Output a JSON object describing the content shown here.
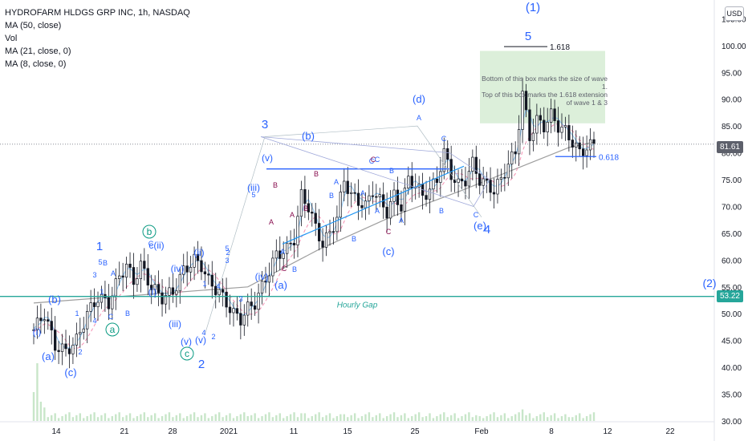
{
  "header": {
    "title": "HYDROFARM HLDGS GRP INC, 1h, NASDAQ",
    "indicators": [
      "MA (50, close)",
      "Vol",
      "MA (21, close, 0)",
      "MA (8, close, 0)"
    ]
  },
  "currency": "USD",
  "price_tags": {
    "current": "81.61",
    "gap": "53.22"
  },
  "colors": {
    "up": "#131722",
    "wave_blue": "#2962ff",
    "teal": "#089981",
    "abc_red": "#880e4f",
    "box_fill": "#d8edd6",
    "gap_line": "#26a69a",
    "ma50": "#9e9e9e",
    "ma21": "#f48fb1",
    "ma8": "#90caf9"
  },
  "annotations": {
    "box_text": [
      "Bottom of this box marks the size of wave",
      "1.",
      "Top of this box marks the 1.618 extension",
      "of wave 1 & 3"
    ],
    "fib_top": "1.618",
    "fib_bottom": "0.618",
    "gap_label": "Hourly Gap",
    "waves": [
      {
        "t": "(1)",
        "c": "wave_blue",
        "s": 15
      },
      {
        "t": "5",
        "c": "wave_blue",
        "s": 15
      },
      {
        "t": "3",
        "c": "wave_blue",
        "s": 15
      },
      {
        "t": "(b)",
        "c": "wave_blue",
        "s": 13
      },
      {
        "t": "(d)",
        "c": "wave_blue",
        "s": 13
      },
      {
        "t": "1",
        "c": "wave_blue",
        "s": 15
      },
      {
        "t": "2",
        "c": "wave_blue",
        "s": 15
      },
      {
        "t": "4",
        "c": "wave_blue",
        "s": 15
      },
      {
        "t": "(2)",
        "c": "wave_blue",
        "s": 14
      },
      {
        "t": "(a)",
        "c": "wave_blue",
        "s": 13
      },
      {
        "t": "(b)",
        "c": "wave_blue",
        "s": 13
      },
      {
        "t": "(c)",
        "c": "wave_blue",
        "s": 13
      },
      {
        "t": "(a)",
        "c": "wave_blue",
        "s": 13
      },
      {
        "t": "(c)",
        "c": "wave_blue",
        "s": 13
      },
      {
        "t": "(e)",
        "c": "wave_blue",
        "s": 13
      },
      {
        "t": "(v)",
        "c": "wave_blue",
        "s": 12
      },
      {
        "t": "(iii)",
        "c": "wave_blue",
        "s": 12
      },
      {
        "t": "(iv)",
        "c": "wave_blue",
        "s": 12
      },
      {
        "t": "(v)",
        "c": "wave_blue",
        "s": 12
      },
      {
        "t": "c(ii)",
        "c": "wave_blue",
        "s": 12
      },
      {
        "t": "(iv)",
        "c": "wave_blue",
        "s": 12
      },
      {
        "t": "(i)",
        "c": "wave_blue",
        "s": 12
      },
      {
        "t": "(i)",
        "c": "wave_blue",
        "s": 12
      },
      {
        "t": "(iii)",
        "c": "wave_blue",
        "s": 12
      },
      {
        "t": "(v)",
        "c": "wave_blue",
        "s": 12
      },
      {
        "t": "(ii)",
        "c": "wave_blue",
        "s": 12
      },
      {
        "t": "5",
        "c": "wave_blue",
        "s": 9
      },
      {
        "t": "3",
        "c": "wave_blue",
        "s": 9
      },
      {
        "t": "1",
        "c": "wave_blue",
        "s": 9
      },
      {
        "t": "2",
        "c": "wave_blue",
        "s": 9
      },
      {
        "t": "4",
        "c": "wave_blue",
        "s": 9
      },
      {
        "t": "1",
        "c": "wave_blue",
        "s": 9
      },
      {
        "t": "2",
        "c": "wave_blue",
        "s": 9
      },
      {
        "t": "3",
        "c": "wave_blue",
        "s": 9
      },
      {
        "t": "4",
        "c": "wave_blue",
        "s": 9
      },
      {
        "t": "5",
        "c": "wave_blue",
        "s": 9
      },
      {
        "t": "5",
        "c": "wave_blue",
        "s": 9
      },
      {
        "t": "3",
        "c": "wave_blue",
        "s": 9
      },
      {
        "t": "1",
        "c": "wave_blue",
        "s": 9
      },
      {
        "t": "2",
        "c": "wave_blue",
        "s": 9
      },
      {
        "t": "4",
        "c": "wave_blue",
        "s": 9
      },
      {
        "t": "B",
        "c": "wave_blue",
        "s": 9
      },
      {
        "t": "A",
        "c": "wave_blue",
        "s": 9
      },
      {
        "t": "C",
        "c": "wave_blue",
        "s": 9
      },
      {
        "t": "B",
        "c": "wave_blue",
        "s": 9
      },
      {
        "t": "C",
        "c": "wave_blue",
        "s": 9
      },
      {
        "t": "B",
        "c": "wave_blue",
        "s": 9
      },
      {
        "t": "A",
        "c": "wave_blue",
        "s": 9
      },
      {
        "t": "A",
        "c": "wave_blue",
        "s": 9
      },
      {
        "t": "B",
        "c": "wave_blue",
        "s": 9
      },
      {
        "t": "C",
        "c": "wave_blue",
        "s": 9
      },
      {
        "t": "A",
        "c": "wave_blue",
        "s": 9
      },
      {
        "t": "B",
        "c": "wave_blue",
        "s": 9
      },
      {
        "t": "A",
        "c": "wave_blue",
        "s": 9
      },
      {
        "t": "B",
        "c": "wave_blue",
        "s": 9
      },
      {
        "t": "C",
        "c": "wave_blue",
        "s": 9
      },
      {
        "t": "A",
        "c": "wave_blue",
        "s": 9
      },
      {
        "t": "C",
        "c": "wave_blue",
        "s": 9
      },
      {
        "t": "A",
        "c": "wave_blue",
        "s": 9
      },
      {
        "t": "B",
        "c": "wave_blue",
        "s": 9
      },
      {
        "t": "C",
        "c": "wave_blue",
        "s": 9
      },
      {
        "t": "B",
        "c": "abc_red",
        "s": 9
      },
      {
        "t": "A",
        "c": "abc_red",
        "s": 9
      },
      {
        "t": "C",
        "c": "abc_red",
        "s": 9
      },
      {
        "t": "B",
        "c": "abc_red",
        "s": 9
      },
      {
        "t": "A",
        "c": "abc_red",
        "s": 9
      },
      {
        "t": "C",
        "c": "abc_red",
        "s": 9
      },
      {
        "t": "C",
        "c": "abc_red",
        "s": 9
      },
      {
        "t": "B",
        "c": "abc_red",
        "s": 9
      },
      {
        "t": "a",
        "c": "teal",
        "s": 12
      },
      {
        "t": "b",
        "c": "teal",
        "s": 12
      },
      {
        "t": "c",
        "c": "teal",
        "s": 12
      }
    ]
  },
  "chart_data": {
    "type": "candlestick",
    "title": "HYDROFARM HLDGS GRP INC, 1h, NASDAQ",
    "x_ticks": [
      "14",
      "21",
      "28",
      "2021",
      "11",
      "15",
      "25",
      "Feb",
      "8",
      "12",
      "22"
    ],
    "y_ticks": [
      30,
      35,
      40,
      45,
      50,
      55,
      60,
      65,
      70,
      75,
      80,
      85,
      90,
      95,
      100,
      105
    ],
    "ylim": [
      30,
      107
    ],
    "current_price": 81.61,
    "gap_price": 53.22,
    "close_path": [
      [
        0,
        47
      ],
      [
        3,
        50
      ],
      [
        6,
        44
      ],
      [
        9,
        43
      ],
      [
        12,
        45
      ],
      [
        15,
        50
      ],
      [
        18,
        53
      ],
      [
        21,
        52
      ],
      [
        24,
        57
      ],
      [
        26,
        59
      ],
      [
        28,
        56
      ],
      [
        30,
        59
      ],
      [
        33,
        55
      ],
      [
        36,
        53
      ],
      [
        39,
        54
      ],
      [
        42,
        58
      ],
      [
        45,
        60
      ],
      [
        47,
        59
      ],
      [
        49,
        56
      ],
      [
        52,
        54
      ],
      [
        54,
        52
      ],
      [
        56,
        50
      ],
      [
        58,
        49
      ],
      [
        60,
        51
      ],
      [
        62,
        52
      ],
      [
        64,
        55
      ],
      [
        66,
        58
      ],
      [
        68,
        61
      ],
      [
        71,
        62
      ],
      [
        73,
        64
      ],
      [
        75,
        72
      ],
      [
        77,
        70
      ],
      [
        79,
        66
      ],
      [
        81,
        63
      ],
      [
        83,
        65
      ],
      [
        85,
        68
      ],
      [
        87,
        75
      ],
      [
        89,
        72
      ],
      [
        91,
        71
      ],
      [
        93,
        70
      ],
      [
        95,
        73
      ],
      [
        97,
        71
      ],
      [
        99,
        69
      ],
      [
        101,
        72
      ],
      [
        103,
        70
      ],
      [
        105,
        75
      ],
      [
        107,
        74
      ],
      [
        109,
        72
      ],
      [
        111,
        73
      ],
      [
        113,
        75
      ],
      [
        115,
        80
      ],
      [
        117,
        76
      ],
      [
        119,
        74
      ],
      [
        121,
        75
      ],
      [
        123,
        78
      ],
      [
        125,
        75
      ],
      [
        127,
        74
      ],
      [
        129,
        73
      ],
      [
        131,
        75
      ],
      [
        133,
        78
      ],
      [
        135,
        80
      ],
      [
        137,
        91
      ],
      [
        139,
        83
      ],
      [
        141,
        86
      ],
      [
        143,
        85
      ],
      [
        145,
        87
      ],
      [
        147,
        85
      ],
      [
        149,
        84
      ],
      [
        151,
        82
      ],
      [
        153,
        80
      ],
      [
        155,
        81
      ],
      [
        157,
        81.6
      ]
    ],
    "ma50": [
      [
        0,
        52
      ],
      [
        20,
        53
      ],
      [
        40,
        54
      ],
      [
        60,
        55
      ],
      [
        80,
        62
      ],
      [
        100,
        68
      ],
      [
        120,
        73
      ],
      [
        135,
        77
      ],
      [
        150,
        81
      ],
      [
        157,
        82
      ]
    ],
    "volume_spikes": [
      [
        0,
        30
      ],
      [
        1,
        60
      ],
      [
        2,
        20
      ],
      [
        3,
        14
      ],
      [
        10,
        9
      ],
      [
        20,
        8
      ],
      [
        40,
        6
      ],
      [
        60,
        5
      ],
      [
        75,
        8
      ],
      [
        87,
        7
      ],
      [
        110,
        5
      ],
      [
        125,
        5
      ],
      [
        137,
        12
      ],
      [
        150,
        4
      ]
    ]
  }
}
